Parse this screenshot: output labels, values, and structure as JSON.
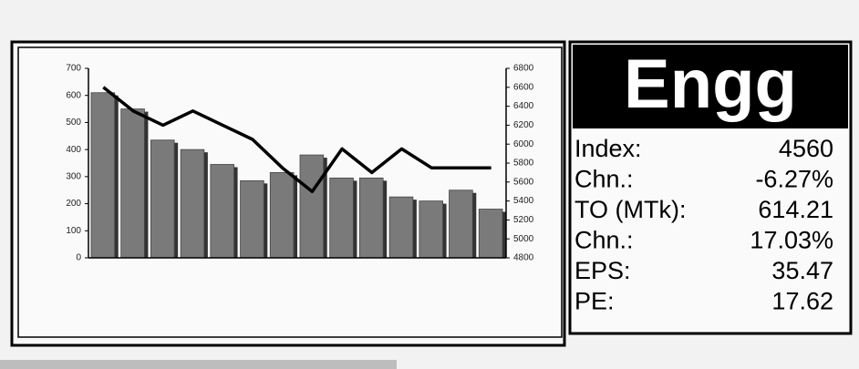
{
  "chart_data": {
    "type": "bar-line",
    "categories": [
      null,
      null,
      null,
      null,
      null,
      null,
      null,
      null,
      null,
      null,
      null,
      null,
      null,
      null
    ],
    "series": [
      {
        "type": "bar",
        "color": "#7a7a7a",
        "values": [
          610,
          550,
          435,
          400,
          345,
          285,
          315,
          380,
          295,
          295,
          225,
          210,
          250,
          180
        ]
      },
      {
        "type": "line",
        "axis": "y2",
        "color": "#000000",
        "values": [
          6600,
          6350,
          6200,
          6350,
          6200,
          6050,
          5750,
          5500,
          5950,
          5700,
          5950,
          5750,
          5750,
          5750
        ]
      }
    ],
    "ylim": [
      0,
      700
    ],
    "yticks": [
      0,
      100,
      200,
      300,
      400,
      500,
      600,
      700
    ],
    "y2lim": [
      4800,
      6800
    ],
    "y2ticks": [
      4800,
      5000,
      5200,
      5400,
      5600,
      5800,
      6000,
      6200,
      6400,
      6600,
      6800
    ],
    "grid": false
  },
  "panel": {
    "title": "Engg",
    "rows": [
      {
        "label": "Index:",
        "value": "4560"
      },
      {
        "label": "Chn.:",
        "value": "-6.27%"
      },
      {
        "label": "TO (MTk):",
        "value": "614.21"
      },
      {
        "label": "Chn.:",
        "value": "17.03%"
      },
      {
        "label": "EPS:",
        "value": "35.47"
      },
      {
        "label": "PE:",
        "value": "17.62"
      }
    ]
  }
}
